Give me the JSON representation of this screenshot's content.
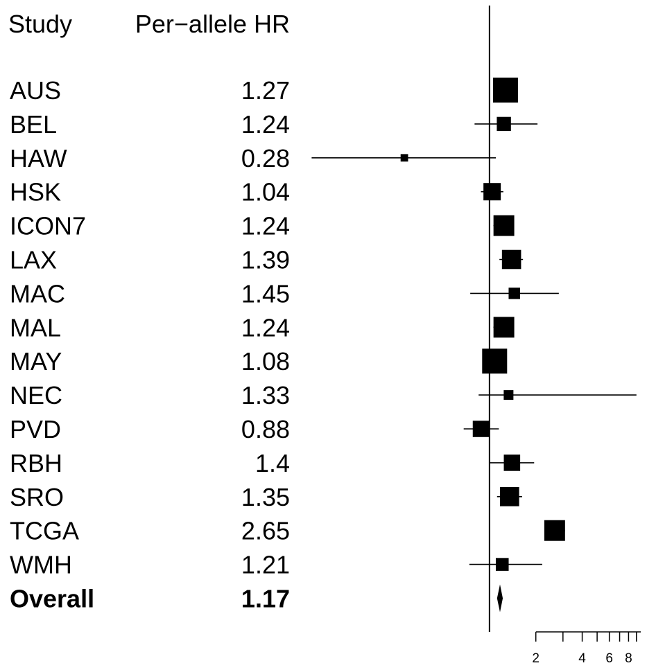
{
  "chart_data": {
    "type": "forest",
    "column_headers": {
      "study": "Study",
      "estimate": "Per−allele HR"
    },
    "x_scale": "log",
    "reference_line": 1,
    "rows": [
      {
        "study": "AUS",
        "hr_label": "1.27",
        "hr": 1.27,
        "ci": [
          1.15,
          1.42
        ],
        "weight": 0.18
      },
      {
        "study": "BEL",
        "hr_label": "1.24",
        "hr": 1.24,
        "ci": [
          0.8,
          2.05
        ],
        "weight": 0.05
      },
      {
        "study": "HAW",
        "hr_label": "0.28",
        "hr": 0.28,
        "ci": [
          0.07,
          1.1
        ],
        "weight": 0.01
      },
      {
        "study": "HSK",
        "hr_label": "1.04",
        "hr": 1.04,
        "ci": [
          0.88,
          1.23
        ],
        "weight": 0.08
      },
      {
        "study": "ICON7",
        "hr_label": "1.24",
        "hr": 1.24,
        "ci": [
          1.06,
          1.4
        ],
        "weight": 0.12
      },
      {
        "study": "LAX",
        "hr_label": "1.39",
        "hr": 1.39,
        "ci": [
          1.16,
          1.65
        ],
        "weight": 0.1
      },
      {
        "study": "MAC",
        "hr_label": "1.45",
        "hr": 1.45,
        "ci": [
          0.75,
          2.82
        ],
        "weight": 0.03
      },
      {
        "study": "MAL",
        "hr_label": "1.24",
        "hr": 1.24,
        "ci": [
          1.06,
          1.4
        ],
        "weight": 0.12
      },
      {
        "study": "MAY",
        "hr_label": "1.08",
        "hr": 1.08,
        "ci": [
          0.96,
          1.22
        ],
        "weight": 0.18
      },
      {
        "study": "NEC",
        "hr_label": "1.33",
        "hr": 1.33,
        "ci": [
          0.85,
          9.0
        ],
        "weight": 0.02
      },
      {
        "study": "PVD",
        "hr_label": "0.88",
        "hr": 0.88,
        "ci": [
          0.68,
          1.15
        ],
        "weight": 0.07
      },
      {
        "study": "RBH",
        "hr_label": "1.4",
        "hr": 1.4,
        "ci": [
          1.0,
          1.95
        ],
        "weight": 0.07
      },
      {
        "study": "SRO",
        "hr_label": "1.35",
        "hr": 1.35,
        "ci": [
          1.12,
          1.63
        ],
        "weight": 0.1
      },
      {
        "study": "TCGA",
        "hr_label": "2.65",
        "hr": 2.65,
        "ci": [
          2.3,
          3.1
        ],
        "weight": 0.12
      },
      {
        "study": "WMH",
        "hr_label": "1.21",
        "hr": 1.21,
        "ci": [
          0.74,
          2.2
        ],
        "weight": 0.04
      }
    ],
    "overall": {
      "study": "Overall",
      "hr_label": "1.17",
      "hr": 1.17,
      "ci": [
        1.12,
        1.22
      ]
    },
    "x_ticks": [
      2,
      4,
      6,
      8
    ],
    "x_tick_labels": [
      "2",
      "4",
      "6",
      "8"
    ],
    "xlim": [
      0.069,
      9.6
    ]
  }
}
